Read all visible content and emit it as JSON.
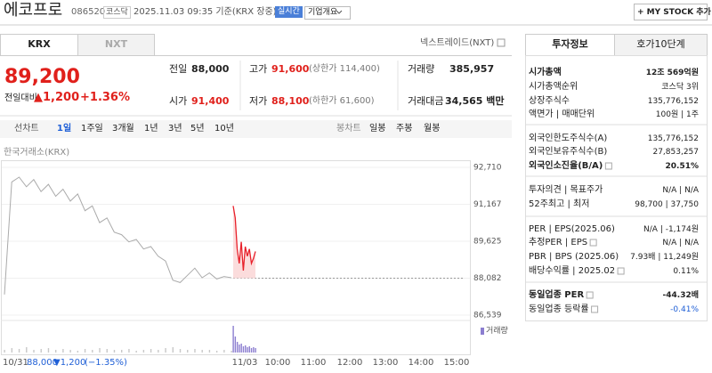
{
  "header": {
    "name": "에코프로",
    "code": "086520",
    "market": "코스닥",
    "timestamp": "2025.11.03 09:35 기준(KRX 장중)",
    "realtime": "실시간",
    "company_info": "기업개요",
    "my_stock": "+ MY STOCK 추가"
  },
  "tabs": {
    "krx": "KRX",
    "nxt": "NXT",
    "nxt_link": "넥스트레이드(NXT)"
  },
  "quote": {
    "price": "89,200",
    "change_label": "전일대비",
    "change": "▲1,200",
    "change_pct": "+1.36%"
  },
  "stats": [
    [
      {
        "label": "전일",
        "value": "88,000"
      },
      {
        "label": "고가",
        "value": "91,600",
        "note": "(상한가 114,400)"
      },
      {
        "label": "거래량",
        "value": "385,957"
      }
    ],
    [
      {
        "label": "시가",
        "value": "91,400"
      },
      {
        "label": "저가",
        "value": "88,100",
        "note": "(하한가 61,600)"
      },
      {
        "label": "거래대금",
        "value": "34,565 백만"
      }
    ]
  ],
  "chart_tabs": {
    "line_chart": "선차트",
    "periods": [
      "1일",
      "1주일",
      "3개월",
      "1년",
      "3년",
      "5년",
      "10년"
    ],
    "candle_chart": "봉차트",
    "candle_periods": [
      "일봉",
      "주봉",
      "월봉"
    ]
  },
  "chart": {
    "source": "한국거래소(KRX)",
    "ylim": [
      86539,
      92710
    ],
    "yticks": [
      {
        "value": 86539,
        "label": "86,539"
      },
      {
        "value": 88082,
        "label": "88,082"
      },
      {
        "value": 89625,
        "label": "89,625"
      },
      {
        "value": 91167,
        "label": "91,167"
      },
      {
        "value": 92710,
        "label": "92,710"
      }
    ],
    "series": [
      {
        "color": "#aaaaaa",
        "values": [
          87400,
          92100,
          92300,
          91900,
          92200,
          91700,
          92000,
          91500,
          91800,
          91300,
          91600,
          90900,
          91100,
          90400,
          90600,
          90000,
          89900,
          89600,
          89700,
          89300,
          89400,
          89000,
          88800,
          88000,
          87900,
          88200,
          88500,
          88100,
          88300,
          88050,
          88150,
          88100
        ]
      },
      {
        "color": "#e8202a",
        "values": [
          91100,
          90600,
          89300,
          88700,
          89600,
          88400,
          89400,
          89000,
          89300,
          88700,
          88900,
          89200
        ]
      }
    ],
    "volume_label": "거래량",
    "volume": [
      [
        3,
        5,
        4,
        6,
        3,
        4,
        5,
        3,
        4,
        3,
        2,
        4,
        3,
        5,
        4,
        3,
        3,
        4,
        2,
        3,
        4,
        3,
        5,
        6,
        4,
        3,
        4,
        3,
        3,
        2,
        3,
        2
      ],
      [
        30,
        18,
        12,
        9,
        10,
        7,
        8,
        6,
        7,
        5,
        6,
        5
      ]
    ],
    "x_labels": [
      "11/03",
      "10:00",
      "11:00",
      "12:00",
      "13:00",
      "14:00",
      "15:00"
    ],
    "prev_day": {
      "date": "10/31",
      "close": "88,000",
      "change": "▼1,200",
      "change_pct": "(−1.35%)"
    }
  },
  "invest_info": {
    "tabs": [
      "투자정보",
      "호가10단계"
    ],
    "rows": [
      {
        "label": "시가총액",
        "value": "12조 569억원"
      },
      {
        "label": "시가총액순위",
        "value": "코스닥 3위"
      },
      {
        "label": "상장주식수",
        "value": "135,776,152"
      },
      {
        "label": "액면가 | 매매단위",
        "value": "100원 | 1주"
      },
      {
        "label": "외국인한도주식수(A)",
        "value": "135,776,152"
      },
      {
        "label": "외국인보유주식수(B)",
        "value": "27,853,257"
      },
      {
        "label": "외국인소진율(B/A)",
        "value": "20.51%"
      },
      {
        "label": "투자의견 | 목표주가",
        "value": "N/A | N/A"
      },
      {
        "label": "52주최고 | 최저",
        "value": "98,700 | 37,750"
      },
      {
        "label": "PER | EPS(2025.06)",
        "value": "N/A | -1,174원"
      },
      {
        "label": "추정PER | EPS",
        "value": "N/A | N/A"
      },
      {
        "label": "PBR | BPS (2025.06)",
        "value": "7.93배 | 11,249원"
      },
      {
        "label": "배당수익률 | 2025.02",
        "value": "0.11%"
      },
      {
        "label": "동일업종 PER",
        "value": "-44.32배"
      },
      {
        "label": "동일업종 등락률",
        "value": "-0.41%"
      }
    ]
  }
}
